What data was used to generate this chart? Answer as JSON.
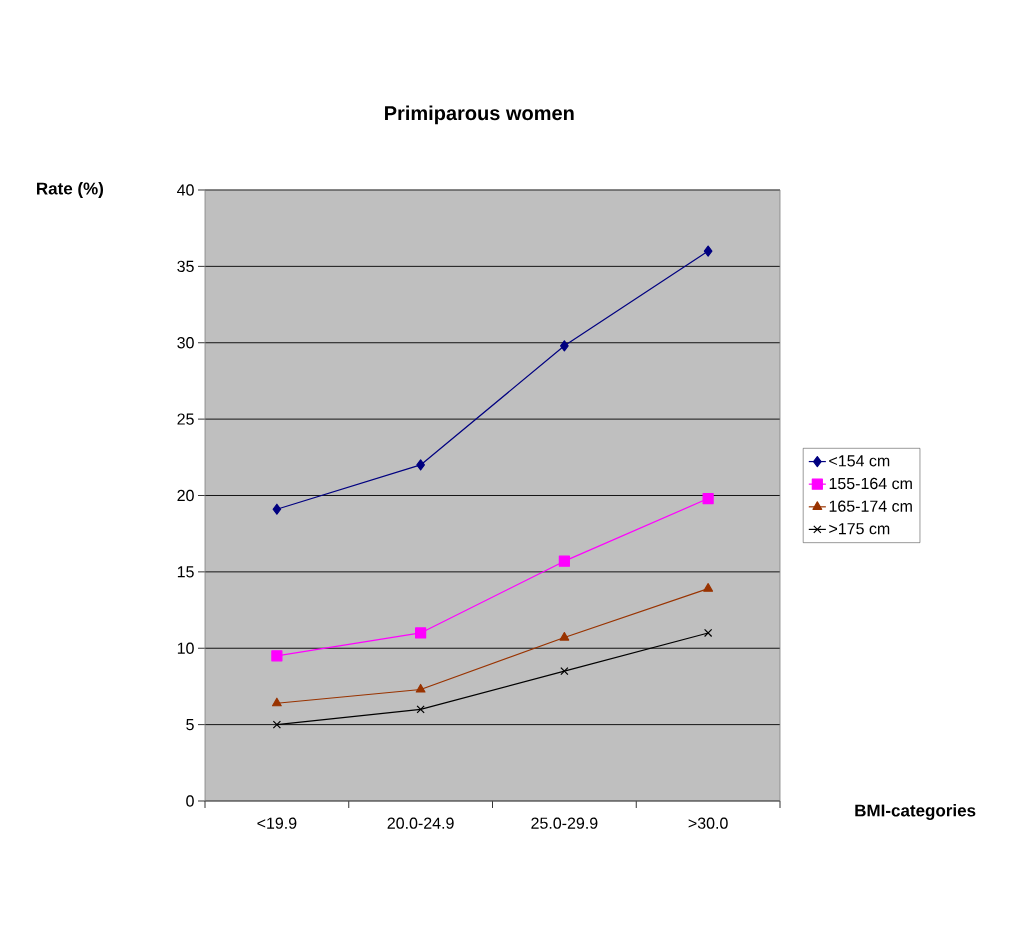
{
  "chart_data": {
    "type": "line",
    "title": "Primiparous women",
    "xlabel": "BMI-categories",
    "ylabel": "Rate (%)",
    "categories": [
      "<19.9",
      "20.0-24.9",
      "25.0-29.9",
      ">30.0"
    ],
    "series": [
      {
        "name": "<154 cm",
        "color": "#000080",
        "marker": "diamond",
        "values": [
          19.1,
          22.0,
          29.8,
          36.0
        ]
      },
      {
        "name": "155-164 cm",
        "color": "#ff00ff",
        "marker": "square",
        "values": [
          9.5,
          11.0,
          15.7,
          19.8
        ]
      },
      {
        "name": "165-174 cm",
        "color": "#993300",
        "marker": "triangle",
        "values": [
          6.4,
          7.3,
          10.7,
          13.9
        ]
      },
      {
        "name": ">175 cm",
        "color": "#000000",
        "marker": "cross",
        "values": [
          5.0,
          6.0,
          8.5,
          11.0
        ]
      }
    ],
    "ylim": [
      0,
      40
    ],
    "yticks": [
      0,
      5,
      10,
      15,
      20,
      25,
      30,
      35,
      40
    ],
    "grid": "y",
    "legend": "right",
    "line_style": "solid"
  }
}
